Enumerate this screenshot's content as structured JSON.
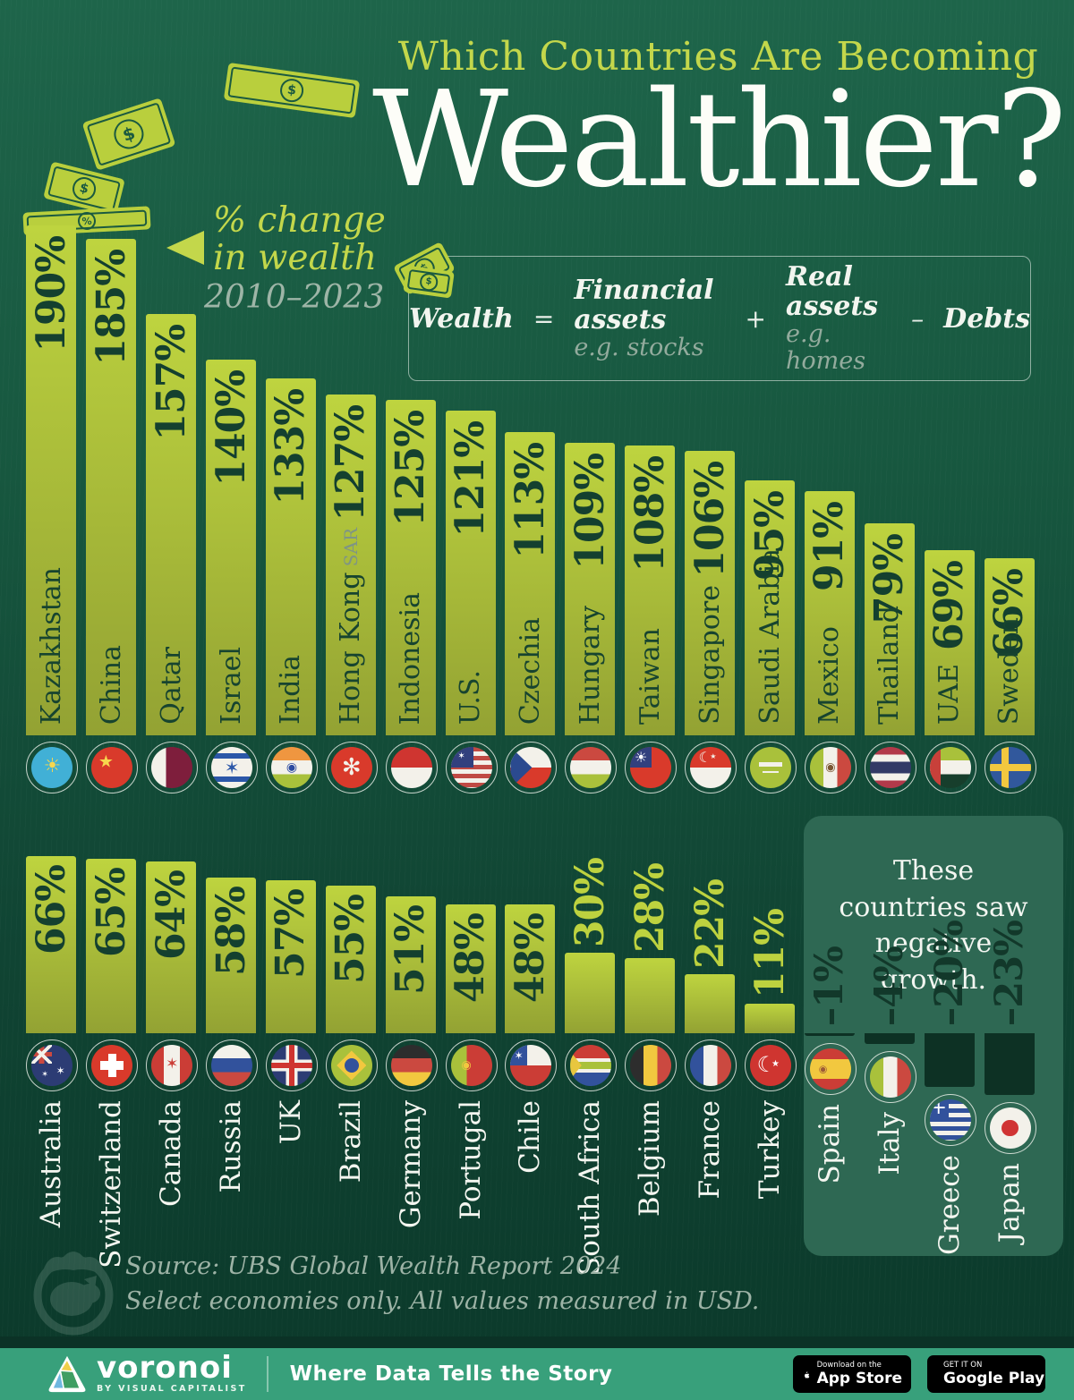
{
  "header": {
    "kicker": "Which Countries Are Becoming",
    "title": "Wealthier?"
  },
  "legend": {
    "line1": "% change",
    "line2": "in wealth",
    "period": "2010–2023"
  },
  "formula": {
    "wealth": "Wealth",
    "equals": "=",
    "financial": "Financial assets",
    "financial_sub": "e.g. stocks",
    "plus": "+",
    "real": "Real assets",
    "real_sub": "e.g. homes",
    "minus": "–",
    "debts": "Debts"
  },
  "negative_panel": {
    "heading": "These countries saw negative growth."
  },
  "chart_data": {
    "type": "bar",
    "title": "Which Countries Are Becoming Wealthier?",
    "ylabel": "% change in wealth",
    "period": "2010–2023",
    "unit": "%",
    "ylim": [
      -23,
      190
    ],
    "legend_position": "top-left",
    "grid": false,
    "rows": [
      {
        "name": "row1",
        "countries": [
          {
            "country": "Kazakhstan",
            "value": 190,
            "flag": "kz"
          },
          {
            "country": "China",
            "value": 185,
            "flag": "cn"
          },
          {
            "country": "Qatar",
            "value": 157,
            "flag": "qa"
          },
          {
            "country": "Israel",
            "value": 140,
            "flag": "il"
          },
          {
            "country": "India",
            "value": 133,
            "flag": "in"
          },
          {
            "country": "Hong Kong",
            "suffix": "SAR",
            "value": 127,
            "flag": "hk"
          },
          {
            "country": "Indonesia",
            "value": 125,
            "flag": "id"
          },
          {
            "country": "U.S.",
            "value": 121,
            "flag": "us"
          },
          {
            "country": "Czechia",
            "value": 113,
            "flag": "cz"
          },
          {
            "country": "Hungary",
            "value": 109,
            "flag": "hu"
          },
          {
            "country": "Taiwan",
            "value": 108,
            "flag": "tw"
          },
          {
            "country": "Singapore",
            "value": 106,
            "flag": "sg"
          },
          {
            "country": "Saudi Arabia",
            "value": 95,
            "flag": "sa"
          },
          {
            "country": "Mexico",
            "value": 91,
            "flag": "mx"
          },
          {
            "country": "Thailand",
            "value": 79,
            "flag": "th"
          },
          {
            "country": "UAE",
            "value": 69,
            "flag": "ae"
          },
          {
            "country": "Sweden",
            "value": 66,
            "flag": "se"
          }
        ]
      },
      {
        "name": "row2",
        "countries": [
          {
            "country": "Australia",
            "value": 66,
            "flag": "au"
          },
          {
            "country": "Switzerland",
            "value": 65,
            "flag": "ch"
          },
          {
            "country": "Canada",
            "value": 64,
            "flag": "ca"
          },
          {
            "country": "Russia",
            "value": 58,
            "flag": "ru"
          },
          {
            "country": "UK",
            "value": 57,
            "flag": "gb"
          },
          {
            "country": "Brazil",
            "value": 55,
            "flag": "br"
          },
          {
            "country": "Germany",
            "value": 51,
            "flag": "de"
          },
          {
            "country": "Portugal",
            "value": 48,
            "flag": "pt"
          },
          {
            "country": "Chile",
            "value": 48,
            "flag": "cl"
          },
          {
            "country": "South Africa",
            "value": 30,
            "flag": "za"
          },
          {
            "country": "Belgium",
            "value": 28,
            "flag": "be"
          },
          {
            "country": "France",
            "value": 22,
            "flag": "fr"
          },
          {
            "country": "Turkey",
            "value": 11,
            "flag": "tr"
          }
        ]
      },
      {
        "name": "negative",
        "countries": [
          {
            "country": "Spain",
            "value": -1,
            "flag": "es"
          },
          {
            "country": "Italy",
            "value": -4,
            "flag": "it"
          },
          {
            "country": "Greece",
            "value": -20,
            "flag": "gr"
          },
          {
            "country": "Japan",
            "value": -23,
            "flag": "jp"
          }
        ]
      }
    ]
  },
  "source": {
    "line1": "Source: UBS Global Wealth Report 2024",
    "line2": "Select economies only. All values measured in USD."
  },
  "footer": {
    "brand": "voronoi",
    "brand_sub": "BY VISUAL CAPITALIST",
    "tagline": "Where Data Tells the Story",
    "appstore_top": "Download on the",
    "appstore_bottom": "App Store",
    "gplay_top": "GET IT ON",
    "gplay_bottom": "Google Play"
  },
  "colors": {
    "background_top": "#1e654a",
    "background_bottom": "#0b392a",
    "bar_top": "#bed43f",
    "bar_bottom": "#93a233",
    "bar_text": "#14402f",
    "accent_yellow": "#c3d74b",
    "negative_bar": "#0d3124",
    "negative_panel": "#2e6853",
    "footer_bg": "#38a07b",
    "muted_text": "#9db3a6"
  }
}
